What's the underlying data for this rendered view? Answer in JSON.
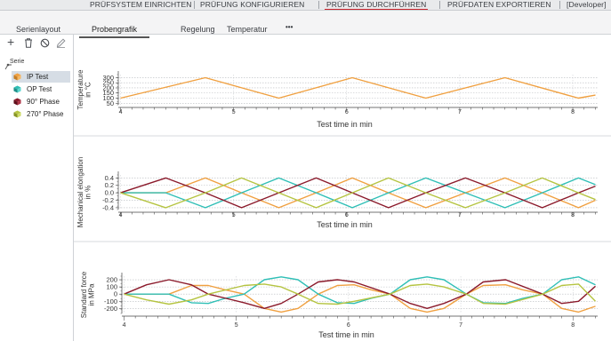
{
  "menu": {
    "items": [
      {
        "label": "PRÜFSYSTEM EINRICHTEN"
      },
      {
        "label": "PRÜFUNG KONFIGURIEREN"
      },
      {
        "label": "PRÜFUNG DURCHFÜHREN"
      },
      {
        "label": "PRÜFDATEN EXPORTIEREN"
      }
    ],
    "user": "[Developer]",
    "active_index": 2
  },
  "subnav": {
    "left_label": "Serienlayout",
    "tabs": [
      {
        "label": "Probengrafik"
      },
      {
        "label": "Regelung"
      },
      {
        "label": "Temperatur"
      }
    ],
    "more_label": "•••",
    "active_index": 0
  },
  "toolbar": {
    "add_icon": "plus-icon",
    "delete_icon": "trash-icon",
    "block_icon": "no-entry-icon",
    "edit_icon": "pencil-icon"
  },
  "series_panel": {
    "header": "Serie",
    "items": [
      {
        "label": "IP Test",
        "color": "#f0a040",
        "selected": true
      },
      {
        "label": "OP Test",
        "color": "#2fbfb6",
        "selected": false
      },
      {
        "label": "90° Phase",
        "color": "#8b1a2b",
        "selected": false
      },
      {
        "label": "270° Phase",
        "color": "#b5c441",
        "selected": false
      }
    ]
  },
  "chart_data": [
    {
      "type": "line",
      "ylabel": "Temperature in °C",
      "xlabel": "Test time in min",
      "xlim": [
        3.98,
        8.22
      ],
      "ylim": [
        35,
        330
      ],
      "yticks": [
        50,
        100,
        150,
        200,
        250,
        300
      ],
      "xticks": [
        4,
        5,
        6,
        7,
        8
      ],
      "grid": true,
      "series": [
        {
          "color": "#f0a040",
          "x": [
            4.0,
            4.75,
            5.4,
            6.05,
            6.7,
            7.4,
            8.05,
            8.2
          ],
          "y": [
            100,
            300,
            100,
            300,
            100,
            300,
            100,
            130
          ]
        }
      ]
    },
    {
      "type": "line",
      "ylabel": "Mechanical elongation in %",
      "xlabel": "Test time in min",
      "xlim": [
        3.98,
        8.22
      ],
      "ylim": [
        -0.45,
        0.48
      ],
      "yticks": [
        -0.4,
        -0.2,
        0.0,
        0.2,
        0.4
      ],
      "xticks": [
        4,
        5,
        6,
        7,
        8
      ],
      "grid": true,
      "series": [
        {
          "color": "#f0a040",
          "x": [
            4.0,
            4.15,
            4.4,
            4.75,
            5.07,
            5.4,
            5.73,
            6.05,
            6.37,
            6.7,
            7.05,
            7.4,
            7.73,
            8.05,
            8.2
          ],
          "y": [
            0.0,
            0.0,
            0.0,
            0.4,
            0.0,
            -0.4,
            0.0,
            0.4,
            0.0,
            -0.4,
            0.0,
            0.4,
            0.0,
            -0.4,
            -0.2
          ]
        },
        {
          "color": "#2fbfb6",
          "x": [
            4.0,
            4.4,
            4.75,
            5.07,
            5.4,
            5.73,
            6.05,
            6.37,
            6.7,
            7.05,
            7.4,
            7.73,
            8.05,
            8.2
          ],
          "y": [
            0.0,
            0.0,
            -0.4,
            0.0,
            0.4,
            0.0,
            -0.4,
            0.0,
            0.4,
            0.0,
            -0.4,
            0.0,
            0.4,
            0.22
          ]
        },
        {
          "color": "#8b1a2b",
          "x": [
            4.0,
            4.4,
            4.75,
            5.07,
            5.4,
            5.73,
            6.05,
            6.37,
            6.7,
            7.05,
            7.4,
            7.73,
            8.05,
            8.2
          ],
          "y": [
            0.0,
            0.4,
            0.0,
            -0.4,
            0.0,
            0.4,
            0.0,
            -0.4,
            0.0,
            0.4,
            0.0,
            -0.4,
            0.0,
            0.18
          ]
        },
        {
          "color": "#b5c441",
          "x": [
            4.0,
            4.4,
            4.75,
            5.07,
            5.4,
            5.73,
            6.05,
            6.37,
            6.7,
            7.05,
            7.4,
            7.73,
            8.05,
            8.2
          ],
          "y": [
            0.0,
            -0.4,
            0.0,
            0.4,
            0.0,
            -0.4,
            0.0,
            0.4,
            0.0,
            -0.4,
            0.0,
            0.4,
            0.0,
            -0.18
          ]
        }
      ]
    },
    {
      "type": "line",
      "ylabel": "Standard force in MPa",
      "xlabel": "Test time in min",
      "xlim": [
        3.98,
        8.22
      ],
      "ylim": [
        -270,
        250
      ],
      "yticks": [
        -200,
        -100,
        0,
        100,
        200
      ],
      "xticks": [
        4,
        5,
        6,
        7,
        8
      ],
      "grid": true,
      "series": [
        {
          "color": "#f0a040",
          "x": [
            4.0,
            4.15,
            4.4,
            4.6,
            4.75,
            4.9,
            5.07,
            5.25,
            5.4,
            5.55,
            5.73,
            5.9,
            6.05,
            6.2,
            6.37,
            6.55,
            6.7,
            6.85,
            7.05,
            7.2,
            7.4,
            7.55,
            7.73,
            7.9,
            8.05,
            8.2
          ],
          "y": [
            0,
            0,
            0,
            120,
            120,
            60,
            0,
            -200,
            -250,
            -200,
            0,
            120,
            130,
            60,
            0,
            -200,
            -250,
            -200,
            0,
            120,
            130,
            60,
            0,
            -200,
            -250,
            -170
          ]
        },
        {
          "color": "#2fbfb6",
          "x": [
            4.0,
            4.4,
            4.6,
            4.75,
            4.9,
            5.07,
            5.25,
            5.4,
            5.55,
            5.73,
            5.9,
            6.05,
            6.2,
            6.37,
            6.55,
            6.7,
            6.85,
            7.05,
            7.2,
            7.4,
            7.55,
            7.73,
            7.9,
            8.05,
            8.2
          ],
          "y": [
            0,
            0,
            -120,
            -130,
            -60,
            0,
            200,
            240,
            200,
            0,
            -120,
            -130,
            -60,
            0,
            200,
            240,
            200,
            0,
            -120,
            -130,
            -60,
            0,
            200,
            240,
            130
          ]
        },
        {
          "color": "#8b1a2b",
          "x": [
            4.0,
            4.2,
            4.4,
            4.6,
            4.75,
            5.07,
            5.25,
            5.4,
            5.55,
            5.73,
            5.9,
            6.05,
            6.37,
            6.55,
            6.7,
            6.85,
            7.05,
            7.2,
            7.4,
            7.73,
            7.9,
            8.05,
            8.2
          ],
          "y": [
            0,
            130,
            200,
            130,
            0,
            -120,
            -200,
            -130,
            0,
            170,
            200,
            170,
            0,
            -130,
            -200,
            -130,
            0,
            170,
            200,
            0,
            -130,
            -100,
            110
          ]
        },
        {
          "color": "#b5c441",
          "x": [
            4.0,
            4.2,
            4.4,
            4.6,
            4.75,
            5.07,
            5.25,
            5.4,
            5.55,
            5.73,
            5.9,
            6.05,
            6.37,
            6.55,
            6.7,
            6.85,
            7.05,
            7.2,
            7.4,
            7.73,
            7.9,
            8.05,
            8.2
          ],
          "y": [
            0,
            -80,
            -140,
            -80,
            0,
            120,
            140,
            100,
            0,
            -130,
            -140,
            -100,
            0,
            120,
            140,
            100,
            0,
            -130,
            -140,
            0,
            120,
            140,
            -100
          ]
        }
      ]
    }
  ]
}
